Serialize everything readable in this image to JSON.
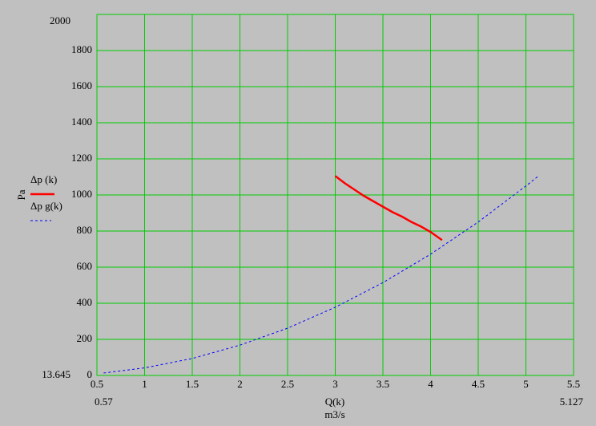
{
  "chart_data": {
    "type": "line",
    "y_label": "Pa",
    "x_label": "Q(k)",
    "x_unit": "m3/s",
    "y_min_label": "13.645",
    "y_max_label": "2000",
    "x_min_label": "0.57",
    "x_max_label": "5.127",
    "xlim": [
      0.5,
      5.5
    ],
    "ylim": [
      0,
      2000
    ],
    "xticks": [
      0.5,
      1,
      1.5,
      2,
      2.5,
      3,
      3.5,
      4,
      4.5,
      5,
      5.5
    ],
    "yticks": [
      0,
      200,
      400,
      600,
      800,
      1000,
      1200,
      1400,
      1600,
      1800
    ],
    "grid": true,
    "grid_color": "#00cc00",
    "series": [
      {
        "name": "Δp (k)",
        "color": "#ff0000",
        "dashed": false,
        "x": [
          3,
          3.1,
          3.2,
          3.3,
          3.4,
          3.5,
          3.6,
          3.7,
          3.8,
          3.9,
          4.0,
          4.12
        ],
        "values": [
          1105,
          1065,
          1030,
          995,
          965,
          935,
          905,
          880,
          850,
          825,
          795,
          750
        ]
      },
      {
        "name": "Δp g(k)",
        "color": "#0000ff",
        "dashed": true,
        "x": [
          0.57,
          1,
          1.5,
          2,
          2.5,
          3,
          3.5,
          4,
          4.5,
          5,
          5.127
        ],
        "values": [
          13.6,
          42,
          94,
          168,
          262,
          378,
          514,
          672,
          850,
          1050,
          1103
        ]
      }
    ]
  }
}
